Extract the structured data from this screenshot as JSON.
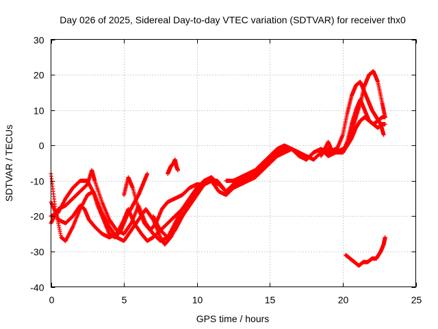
{
  "chart_data": {
    "type": "scatter",
    "title": "Day 026 of 2025, Sidereal Day-to-day VTEC variation (SDTVAR) for receiver thx0",
    "xlabel": "GPS time / hours",
    "ylabel": "SDTVAR / TECUs",
    "xlim": [
      0,
      25
    ],
    "ylim": [
      -40,
      30
    ],
    "xticks": [
      0,
      5,
      10,
      15,
      20,
      25
    ],
    "yticks": [
      -40,
      -30,
      -20,
      -10,
      0,
      10,
      20,
      30
    ],
    "grid": true,
    "marker": "+",
    "color": "#ff0000",
    "series": [
      {
        "name": "track-1",
        "x": [
          0.0,
          0.3,
          0.7,
          1.0,
          1.5,
          2.0,
          2.5,
          2.9,
          3.2,
          3.6,
          4.0,
          4.4,
          4.8,
          5.2,
          5.6,
          6.0,
          6.3,
          6.6
        ],
        "y": [
          -8,
          -18,
          -26,
          -27,
          -23,
          -18,
          -14,
          -13,
          -17,
          -21,
          -25,
          -26,
          -24,
          -20,
          -17,
          -14,
          -11,
          -8
        ]
      },
      {
        "name": "track-2",
        "x": [
          0.0,
          0.5,
          1.0,
          1.5,
          2.0,
          2.5,
          3.0,
          3.5,
          4.0,
          4.5,
          5.0,
          5.5,
          6.0,
          6.5,
          7.0,
          7.5,
          7.8,
          8.2,
          8.6,
          9.0,
          9.5,
          10.0,
          10.5,
          11.0,
          11.4,
          11.8
        ],
        "y": [
          -20,
          -19,
          -15,
          -12,
          -10,
          -10,
          -14,
          -19,
          -23,
          -26,
          -27,
          -24,
          -21,
          -18,
          -21,
          -26,
          -28,
          -26,
          -23,
          -20,
          -17,
          -14,
          -11,
          -10,
          -10,
          -12
        ]
      },
      {
        "name": "track-3",
        "x": [
          0.0,
          0.5,
          1.0,
          1.5,
          2.0,
          2.5,
          2.8,
          3.0,
          3.5,
          4.0,
          4.5,
          5.0,
          5.5,
          6.0,
          6.5,
          7.0,
          7.5,
          8.0,
          8.5,
          9.0,
          9.5,
          10.0,
          10.5,
          11.0
        ],
        "y": [
          -22,
          -18,
          -17,
          -15,
          -13,
          -11,
          -7,
          -10,
          -16,
          -21,
          -24,
          -25,
          -22,
          -17,
          -22,
          -25,
          -27,
          -26,
          -22,
          -18,
          -15,
          -12,
          -10,
          -9
        ]
      },
      {
        "name": "track-4",
        "x": [
          0.0,
          0.5,
          1.0,
          1.5,
          2.0,
          2.3,
          2.6,
          3.0,
          3.5,
          4.0,
          4.5,
          5.0,
          5.3,
          5.7,
          6.2,
          6.6,
          7.0,
          7.5,
          8.0,
          8.5,
          9.0,
          9.5,
          10.0,
          10.5,
          11.0,
          11.5
        ],
        "y": [
          -16,
          -21,
          -22,
          -20,
          -17,
          -18,
          -21,
          -23,
          -25,
          -26,
          -25,
          -21,
          -18,
          -22,
          -25,
          -27,
          -26,
          -24,
          -22,
          -20,
          -18,
          -15,
          -12,
          -10,
          -9,
          -11
        ]
      },
      {
        "name": "track-5",
        "x": [
          5.0,
          5.3,
          5.6,
          6.0,
          6.4,
          6.8,
          7.2,
          7.6,
          8.0,
          8.5,
          9.0,
          9.5,
          10.0,
          10.5,
          11.0,
          11.5,
          12.0,
          12.5,
          13.0,
          13.5,
          14.0,
          14.5,
          15.0,
          15.5,
          16.0,
          16.5,
          17.0,
          17.5,
          18.0,
          18.5,
          19.0,
          19.5,
          20.0,
          20.3,
          20.6,
          20.9,
          21.2,
          21.5,
          21.8,
          22.1,
          22.4,
          22.7,
          22.9
        ],
        "y": [
          -14,
          -9,
          -12,
          -18,
          -22,
          -24,
          -22,
          -18,
          -16,
          -15,
          -14,
          -12,
          -11,
          -11,
          -10,
          -11,
          -13,
          -11,
          -10,
          -9,
          -8,
          -6,
          -4,
          -2,
          -1,
          -1,
          -3,
          -4,
          -2,
          -1,
          -2,
          -1,
          -2,
          0,
          4,
          8,
          12,
          17,
          20,
          21,
          18,
          12,
          8
        ]
      },
      {
        "name": "track-6",
        "x": [
          7.0,
          7.5,
          8.0,
          8.5,
          9.0,
          9.5,
          10.0,
          10.5,
          11.0,
          11.5,
          12.0,
          12.5,
          13.0,
          13.5,
          14.0,
          14.5,
          15.0,
          15.5,
          16.0,
          16.5,
          17.0,
          17.5,
          18.0,
          18.5,
          19.0,
          19.5,
          20.0,
          20.3,
          20.6,
          20.9,
          21.2,
          21.5,
          21.8,
          22.1,
          22.4,
          22.7,
          22.9
        ],
        "y": [
          -20,
          -24,
          -26,
          -24,
          -20,
          -16,
          -13,
          -11,
          -10,
          -13,
          -14,
          -12,
          -11,
          -10,
          -9,
          -7,
          -5,
          -3,
          -2,
          -1,
          -2,
          -3,
          -4,
          -2,
          -1,
          -2,
          -1,
          0,
          2,
          5,
          7,
          8,
          7,
          6,
          5,
          6,
          6
        ]
      },
      {
        "name": "track-7",
        "x": [
          12.0,
          12.5,
          13.0,
          13.5,
          14.0,
          14.5,
          15.0,
          15.5,
          16.0,
          16.5,
          17.0,
          17.5,
          18.0,
          18.5,
          19.0,
          19.5,
          20.0,
          20.3,
          20.6,
          20.9,
          21.2,
          21.5,
          21.8,
          22.1,
          22.4,
          22.7,
          22.9
        ],
        "y": [
          -10,
          -10,
          -9,
          -8,
          -7,
          -5,
          -3,
          -1,
          0,
          -1,
          -2,
          -4,
          -2,
          -1,
          -3,
          -2,
          -2,
          1,
          6,
          10,
          13,
          10,
          7,
          6,
          7,
          8,
          8
        ]
      },
      {
        "name": "track-8",
        "x": [
          18.5,
          19.0,
          19.3,
          19.6,
          20.0,
          20.3,
          20.6,
          20.9,
          21.2,
          21.5,
          21.8,
          22.0,
          22.3,
          22.6,
          22.8
        ],
        "y": [
          -3,
          1,
          -2,
          -1,
          3,
          9,
          14,
          17,
          18,
          15,
          12,
          10,
          8,
          6,
          3
        ]
      },
      {
        "name": "isolated-8.6h",
        "x": [
          8.0,
          8.1,
          8.2,
          8.4,
          8.5,
          8.6,
          8.7
        ],
        "y": [
          -8,
          -7,
          -6,
          -5,
          -4,
          -6,
          -7
        ]
      },
      {
        "name": "isolated-late",
        "x": [
          20.2,
          20.5,
          20.8,
          21.1,
          21.4,
          21.7,
          22.0,
          22.3,
          22.6,
          22.8,
          22.9
        ],
        "y": [
          -31,
          -32,
          -33,
          -34,
          -33,
          -33,
          -32,
          -32,
          -30,
          -28,
          -26
        ]
      }
    ]
  }
}
